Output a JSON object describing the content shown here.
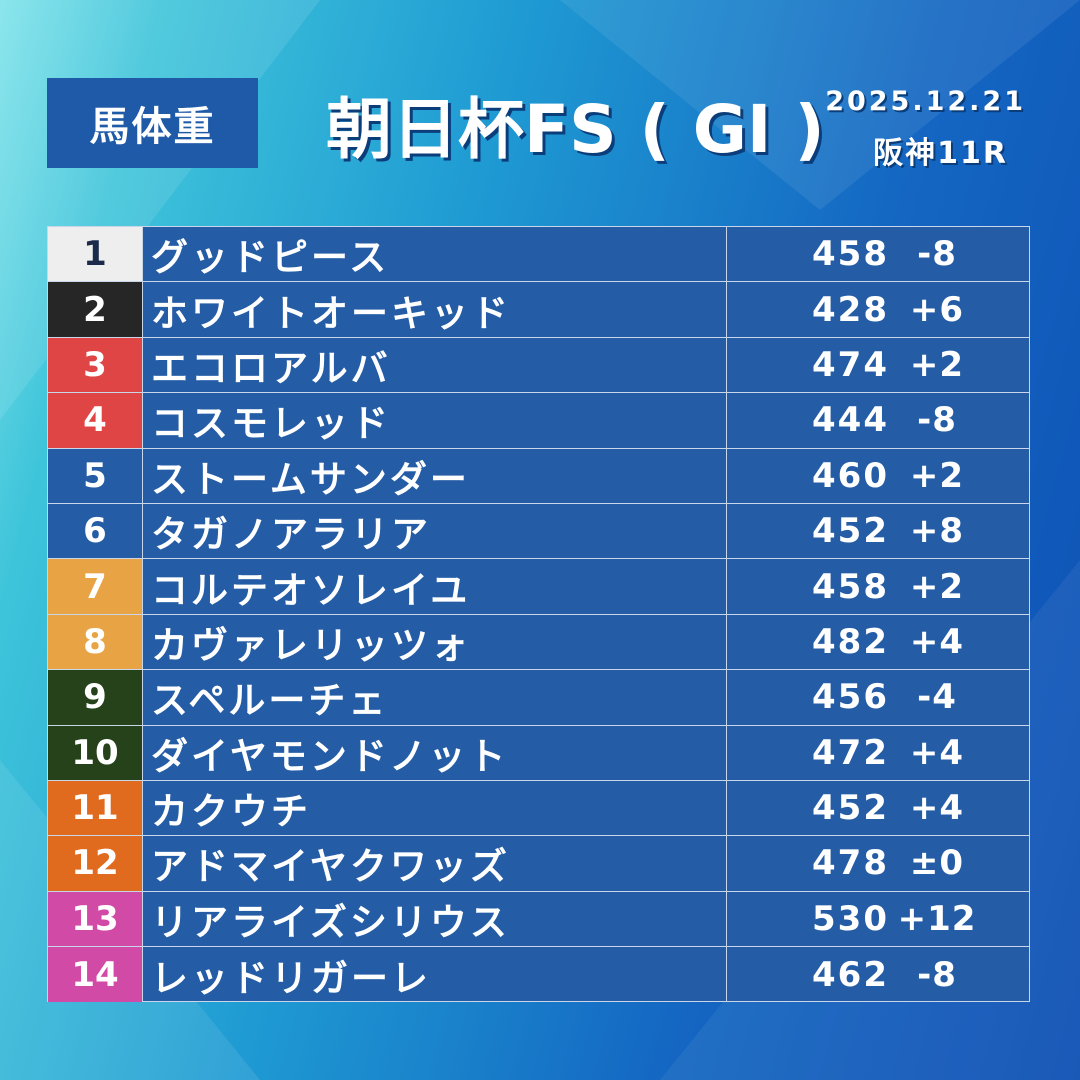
{
  "badge": "馬体重",
  "title": "朝日杯FS ( GI )",
  "date": "2025.12.21",
  "race": "阪神11R",
  "colors": {
    "row_bg": "#245ca6",
    "badge_bg": "#1f5aa8"
  },
  "rows": [
    {
      "no": "1",
      "name": "グッドピース",
      "weight": "458",
      "diff": "-8",
      "frame_bg": "#eeeeee",
      "frame_fg": "#1b2a4a"
    },
    {
      "no": "2",
      "name": "ホワイトオーキッド",
      "weight": "428",
      "diff": "+6",
      "frame_bg": "#262626",
      "frame_fg": "#ffffff"
    },
    {
      "no": "3",
      "name": "エコロアルバ",
      "weight": "474",
      "diff": "+2",
      "frame_bg": "#e04545",
      "frame_fg": "#ffffff"
    },
    {
      "no": "4",
      "name": "コスモレッド",
      "weight": "444",
      "diff": "-8",
      "frame_bg": "#e04545",
      "frame_fg": "#ffffff"
    },
    {
      "no": "5",
      "name": "ストームサンダー",
      "weight": "460",
      "diff": "+2",
      "frame_bg": "#245ca6",
      "frame_fg": "#ffffff"
    },
    {
      "no": "6",
      "name": "タガノアラリア",
      "weight": "452",
      "diff": "+8",
      "frame_bg": "#245ca6",
      "frame_fg": "#ffffff"
    },
    {
      "no": "7",
      "name": "コルテオソレイユ",
      "weight": "458",
      "diff": "+2",
      "frame_bg": "#e8a444",
      "frame_fg": "#ffffff"
    },
    {
      "no": "8",
      "name": "カヴァレリッツォ",
      "weight": "482",
      "diff": "+4",
      "frame_bg": "#e8a444",
      "frame_fg": "#ffffff"
    },
    {
      "no": "9",
      "name": "スペルーチェ",
      "weight": "456",
      "diff": "-4",
      "frame_bg": "#25421b",
      "frame_fg": "#ffffff"
    },
    {
      "no": "10",
      "name": "ダイヤモンドノット",
      "weight": "472",
      "diff": "+4",
      "frame_bg": "#25421b",
      "frame_fg": "#ffffff"
    },
    {
      "no": "11",
      "name": "カクウチ",
      "weight": "452",
      "diff": "+4",
      "frame_bg": "#e06a1e",
      "frame_fg": "#ffffff"
    },
    {
      "no": "12",
      "name": "アドマイヤクワッズ",
      "weight": "478",
      "diff": "±0",
      "frame_bg": "#e06a1e",
      "frame_fg": "#ffffff"
    },
    {
      "no": "13",
      "name": "リアライズシリウス",
      "weight": "530",
      "diff": "+12",
      "frame_bg": "#d04aa6",
      "frame_fg": "#ffffff"
    },
    {
      "no": "14",
      "name": "レッドリガーレ",
      "weight": "462",
      "diff": "-8",
      "frame_bg": "#d04aa6",
      "frame_fg": "#ffffff"
    }
  ]
}
